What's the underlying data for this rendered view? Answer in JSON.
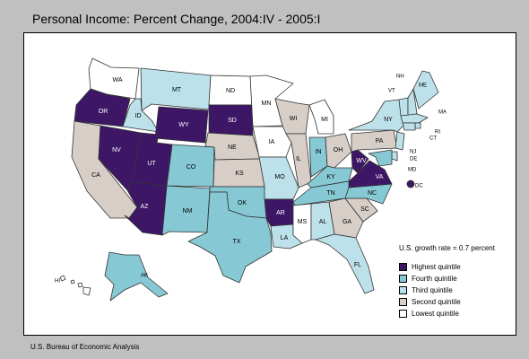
{
  "title": "Personal Income: Percent Change, 2004:IV - 2005:I",
  "source": "U.S. Bureau of Economic Analysis",
  "legend": {
    "growth_rate": "U.S. growth rate = 0.7 percent",
    "items": [
      {
        "key": "q1",
        "label": "Highest quintile",
        "color": "#3d1766"
      },
      {
        "key": "q2",
        "label": "Fourth quintile",
        "color": "#86c8d4"
      },
      {
        "key": "q3",
        "label": "Third quintile",
        "color": "#bde1ea"
      },
      {
        "key": "q4",
        "label": "Second quintile",
        "color": "#d7cec8"
      },
      {
        "key": "q5",
        "label": "Lowest quintile",
        "color": "#ffffff"
      }
    ]
  },
  "states": [
    {
      "abbr": "WA",
      "quintile": "q5"
    },
    {
      "abbr": "OR",
      "quintile": "q1"
    },
    {
      "abbr": "CA",
      "quintile": "q4"
    },
    {
      "abbr": "NV",
      "quintile": "q1"
    },
    {
      "abbr": "ID",
      "quintile": "q3"
    },
    {
      "abbr": "MT",
      "quintile": "q3"
    },
    {
      "abbr": "WY",
      "quintile": "q1"
    },
    {
      "abbr": "UT",
      "quintile": "q1"
    },
    {
      "abbr": "AZ",
      "quintile": "q1"
    },
    {
      "abbr": "CO",
      "quintile": "q2"
    },
    {
      "abbr": "NM",
      "quintile": "q2"
    },
    {
      "abbr": "ND",
      "quintile": "q5"
    },
    {
      "abbr": "SD",
      "quintile": "q1"
    },
    {
      "abbr": "NE",
      "quintile": "q4"
    },
    {
      "abbr": "KS",
      "quintile": "q4"
    },
    {
      "abbr": "OK",
      "quintile": "q2"
    },
    {
      "abbr": "TX",
      "quintile": "q2"
    },
    {
      "abbr": "MN",
      "quintile": "q5"
    },
    {
      "abbr": "IA",
      "quintile": "q5"
    },
    {
      "abbr": "MO",
      "quintile": "q3"
    },
    {
      "abbr": "AR",
      "quintile": "q1"
    },
    {
      "abbr": "LA",
      "quintile": "q3"
    },
    {
      "abbr": "WI",
      "quintile": "q4"
    },
    {
      "abbr": "IL",
      "quintile": "q4"
    },
    {
      "abbr": "MI",
      "quintile": "q5"
    },
    {
      "abbr": "IN",
      "quintile": "q2"
    },
    {
      "abbr": "OH",
      "quintile": "q4"
    },
    {
      "abbr": "KY",
      "quintile": "q2"
    },
    {
      "abbr": "TN",
      "quintile": "q2"
    },
    {
      "abbr": "MS",
      "quintile": "q5"
    },
    {
      "abbr": "AL",
      "quintile": "q3"
    },
    {
      "abbr": "GA",
      "quintile": "q4"
    },
    {
      "abbr": "FL",
      "quintile": "q3"
    },
    {
      "abbr": "SC",
      "quintile": "q4"
    },
    {
      "abbr": "NC",
      "quintile": "q2"
    },
    {
      "abbr": "VA",
      "quintile": "q1"
    },
    {
      "abbr": "WV",
      "quintile": "q1"
    },
    {
      "abbr": "PA",
      "quintile": "q4"
    },
    {
      "abbr": "NY",
      "quintile": "q3"
    },
    {
      "abbr": "VT",
      "quintile": "q3"
    },
    {
      "abbr": "NH",
      "quintile": "q3"
    },
    {
      "abbr": "ME",
      "quintile": "q3"
    },
    {
      "abbr": "MA",
      "quintile": "q3"
    },
    {
      "abbr": "RI",
      "quintile": "q3"
    },
    {
      "abbr": "CT",
      "quintile": "q3"
    },
    {
      "abbr": "NJ",
      "quintile": "q3"
    },
    {
      "abbr": "DE",
      "quintile": "q3"
    },
    {
      "abbr": "MD",
      "quintile": "q2"
    },
    {
      "abbr": "DC",
      "quintile": "q1"
    },
    {
      "abbr": "AK",
      "quintile": "q2"
    },
    {
      "abbr": "HI",
      "quintile": "q5"
    }
  ]
}
